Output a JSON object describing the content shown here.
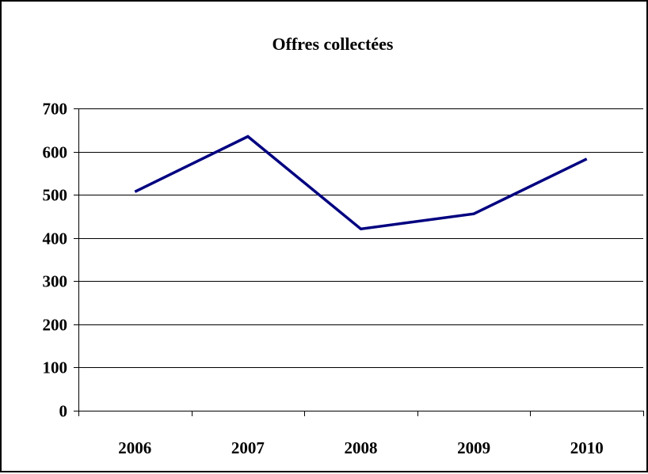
{
  "chart_data": {
    "type": "line",
    "title": "Offres collectées",
    "xlabel": "",
    "ylabel": "",
    "categories": [
      "2006",
      "2007",
      "2008",
      "2009",
      "2010"
    ],
    "series": [
      {
        "values": [
          507,
          635,
          421,
          456,
          583
        ],
        "color": "#000080"
      }
    ],
    "ylim": [
      0,
      700
    ],
    "yticks": [
      0,
      100,
      200,
      300,
      400,
      500,
      600,
      700
    ],
    "grid": true,
    "legend": "none"
  }
}
